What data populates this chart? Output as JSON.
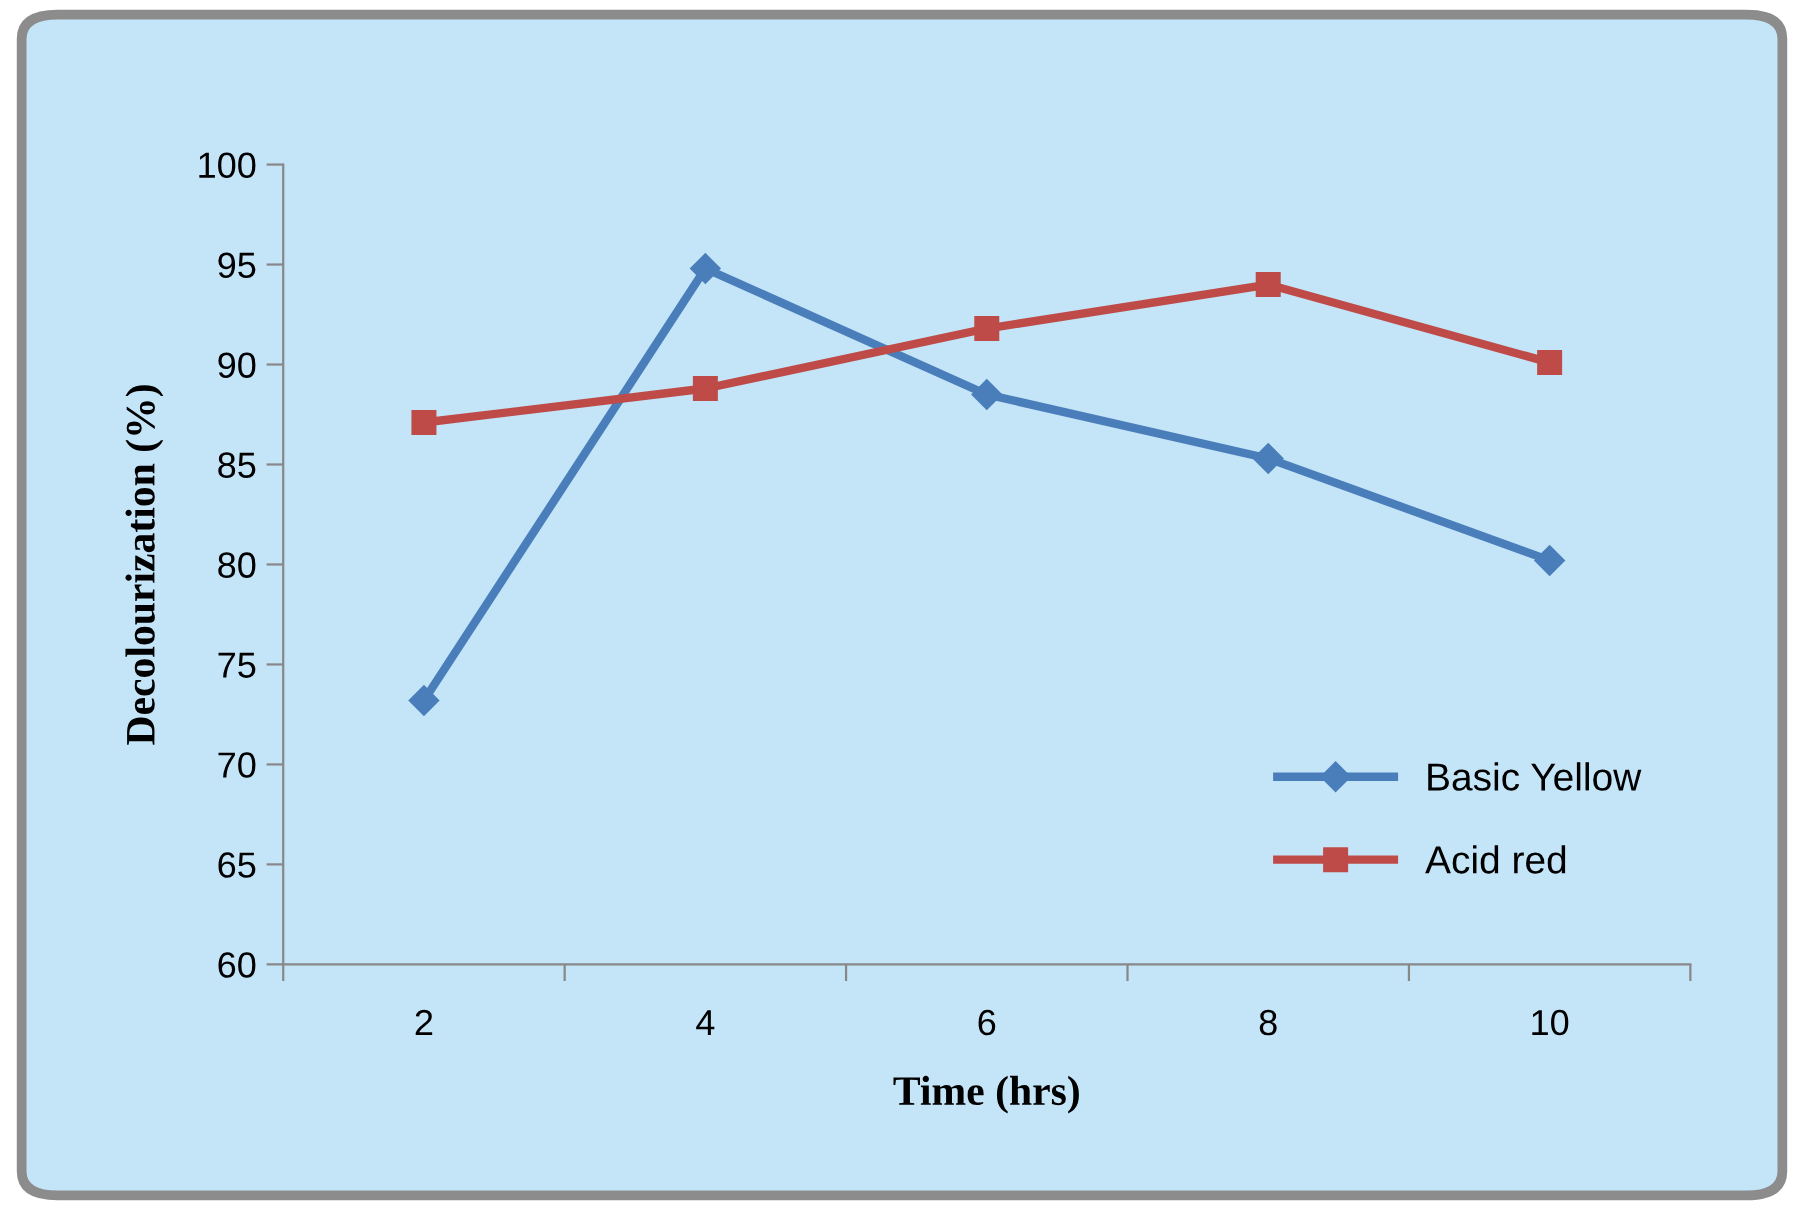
{
  "chart_data": {
    "type": "line",
    "xlabel": "Time (hrs)",
    "ylabel": "Decolourization (%)",
    "categories": [
      "2",
      "4",
      "6",
      "8",
      "10"
    ],
    "series": [
      {
        "name": "Basic Yellow",
        "color": "#4a7ebb",
        "marker": "diamond",
        "values": [
          73.2,
          94.8,
          88.5,
          85.3,
          80.2
        ]
      },
      {
        "name": "Acid red",
        "color": "#be4b48",
        "marker": "square",
        "values": [
          87.1,
          88.8,
          91.8,
          94.0,
          90.1
        ]
      }
    ],
    "ylim": [
      60,
      100
    ],
    "yticks": [
      60,
      65,
      70,
      75,
      80,
      85,
      90,
      95,
      100
    ],
    "grid": false,
    "legend": "bottom right",
    "line_style": "solid"
  }
}
